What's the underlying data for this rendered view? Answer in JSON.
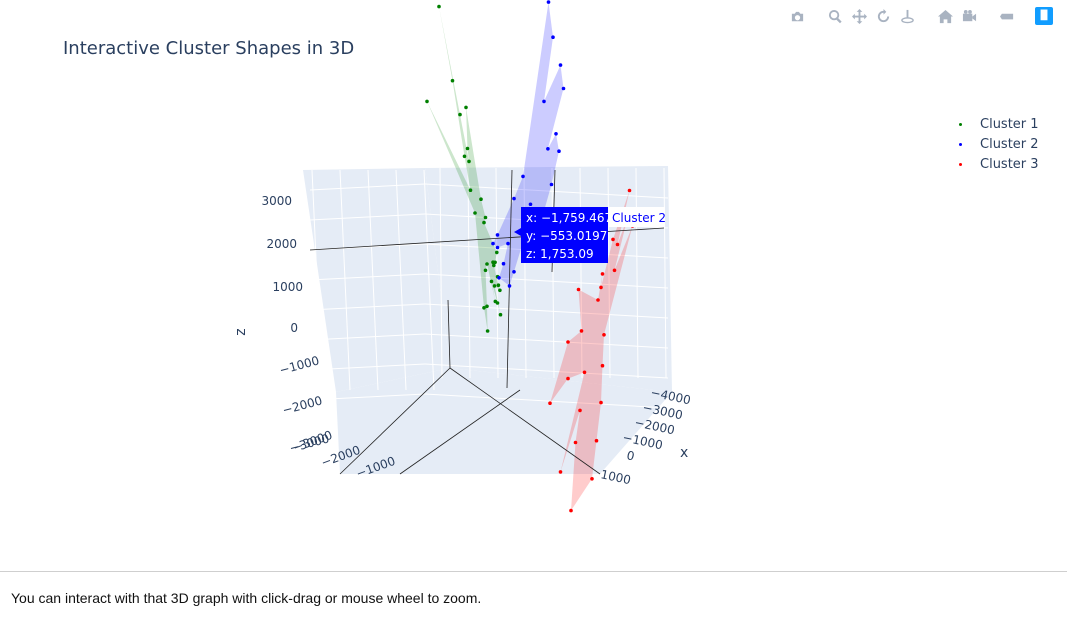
{
  "title": "Interactive Cluster Shapes in 3D",
  "caption": "You can interact with that 3D graph with click-drag or mouse wheel to zoom.",
  "modebar": [
    "camera-icon",
    "zoom-icon",
    "pan-icon",
    "orbit-rotation-icon",
    "turntable-rotation-icon",
    "home-icon",
    "camera-views-icon",
    "hover-toggle-icon",
    "plotly-logo-icon"
  ],
  "legend": {
    "items": [
      {
        "label": "Cluster 1",
        "color": "#008000"
      },
      {
        "label": "Cluster 2",
        "color": "#0000ff"
      },
      {
        "label": "Cluster 3",
        "color": "#ff0000"
      }
    ]
  },
  "hover": {
    "x": "x: −1,759.467",
    "y": "y: −553.0197",
    "z": "z: 1,753.09",
    "name": "Cluster 2"
  },
  "chart_data": {
    "type": "scatter3d",
    "title": "Interactive Cluster Shapes in 3D",
    "axes": {
      "x": {
        "label": "x",
        "ticks": [
          "−4000",
          "−3000",
          "−2000",
          "−1000",
          "0",
          "1000"
        ],
        "range": [
          -4000,
          1000
        ]
      },
      "y": {
        "label": "",
        "ticks": [
          "−3000",
          "−2000",
          "−1000"
        ],
        "range": [
          -3000,
          1000
        ]
      },
      "z": {
        "label": "z",
        "ticks": [
          "3000",
          "2000",
          "1000",
          "0",
          "−1000",
          "−2000",
          "−3000"
        ],
        "range": [
          -3000,
          3500
        ]
      }
    },
    "series": [
      {
        "name": "Cluster 1",
        "color": "#008000",
        "mesh_color": "rgba(0,128,0,0.2)",
        "points": [
          [
            -1200,
            -2600,
            2700
          ],
          [
            -900,
            -2100,
            1900
          ],
          [
            -800,
            -2600,
            1200
          ],
          [
            -700,
            -1800,
            1600
          ],
          [
            -500,
            -1500,
            1300
          ],
          [
            -300,
            -1400,
            2100
          ],
          [
            -150,
            -1200,
            900
          ],
          [
            -100,
            -1300,
            1400
          ],
          [
            0,
            -1000,
            700
          ],
          [
            100,
            -800,
            1100
          ],
          [
            200,
            -1000,
            1600
          ],
          [
            300,
            -600,
            900
          ],
          [
            400,
            -500,
            200
          ],
          [
            500,
            -400,
            400
          ],
          [
            600,
            -200,
            600
          ],
          [
            650,
            -300,
            -200
          ],
          [
            700,
            -100,
            300
          ],
          [
            750,
            0,
            100
          ],
          [
            800,
            -50,
            700
          ],
          [
            820,
            100,
            400
          ],
          [
            850,
            50,
            1000
          ],
          [
            900,
            -200,
            -100
          ],
          [
            950,
            0,
            500
          ],
          [
            980,
            100,
            900
          ],
          [
            1000,
            -100,
            1500
          ],
          [
            1020,
            200,
            600
          ],
          [
            1050,
            150,
            300
          ],
          [
            1080,
            0,
            -300
          ],
          [
            1100,
            300,
            200
          ],
          [
            1120,
            250,
            800
          ]
        ]
      },
      {
        "name": "Cluster 2",
        "color": "#0000ff",
        "mesh_color": "rgba(0,0,255,0.2)",
        "points": [
          [
            -3200,
            -1500,
            3200
          ],
          [
            -2900,
            -1200,
            2900
          ],
          [
            -2700,
            -900,
            2700
          ],
          [
            -2500,
            -700,
            2500
          ],
          [
            -2300,
            -1000,
            2100
          ],
          [
            -2100,
            -600,
            1900
          ],
          [
            -1900,
            -400,
            1800
          ],
          [
            -1759.467,
            -553.0197,
            1753.09
          ],
          [
            -1500,
            -300,
            1400
          ],
          [
            -1300,
            -800,
            1200
          ],
          [
            -1100,
            -500,
            1000
          ],
          [
            -900,
            -200,
            800
          ],
          [
            -700,
            -600,
            1100
          ],
          [
            -600,
            -300,
            700
          ],
          [
            -400,
            -100,
            900
          ],
          [
            -300,
            -700,
            500
          ],
          [
            -200,
            -400,
            600
          ],
          [
            -100,
            -200,
            300
          ],
          [
            0,
            -500,
            500
          ],
          [
            100,
            -300,
            400
          ],
          [
            200,
            -100,
            200
          ],
          [
            300,
            -400,
            700
          ],
          [
            400,
            -200,
            300
          ]
        ]
      },
      {
        "name": "Cluster 3",
        "color": "#ff0000",
        "mesh_color": "rgba(255,0,0,0.2)",
        "points": [
          [
            -3500,
            100,
            1200
          ],
          [
            -3300,
            300,
            800
          ],
          [
            -3000,
            400,
            1100
          ],
          [
            -2800,
            200,
            600
          ],
          [
            -2500,
            500,
            800
          ],
          [
            -2300,
            300,
            200
          ],
          [
            -2100,
            700,
            600
          ],
          [
            -2000,
            400,
            -100
          ],
          [
            -1800,
            600,
            300
          ],
          [
            -1600,
            800,
            -300
          ],
          [
            -1500,
            300,
            100
          ],
          [
            -1400,
            900,
            -700
          ],
          [
            -1300,
            500,
            -400
          ],
          [
            -1200,
            1000,
            -1200
          ],
          [
            -1100,
            700,
            -900
          ],
          [
            -1000,
            400,
            -600
          ],
          [
            -900,
            1100,
            -1700
          ],
          [
            -800,
            800,
            -1400
          ],
          [
            -700,
            600,
            -1000
          ],
          [
            -600,
            1200,
            -2200
          ],
          [
            -500,
            900,
            -1800
          ],
          [
            -400,
            400,
            -1500
          ],
          [
            -300,
            700,
            -2400
          ],
          [
            -200,
            1000,
            -2800
          ]
        ]
      }
    ]
  }
}
